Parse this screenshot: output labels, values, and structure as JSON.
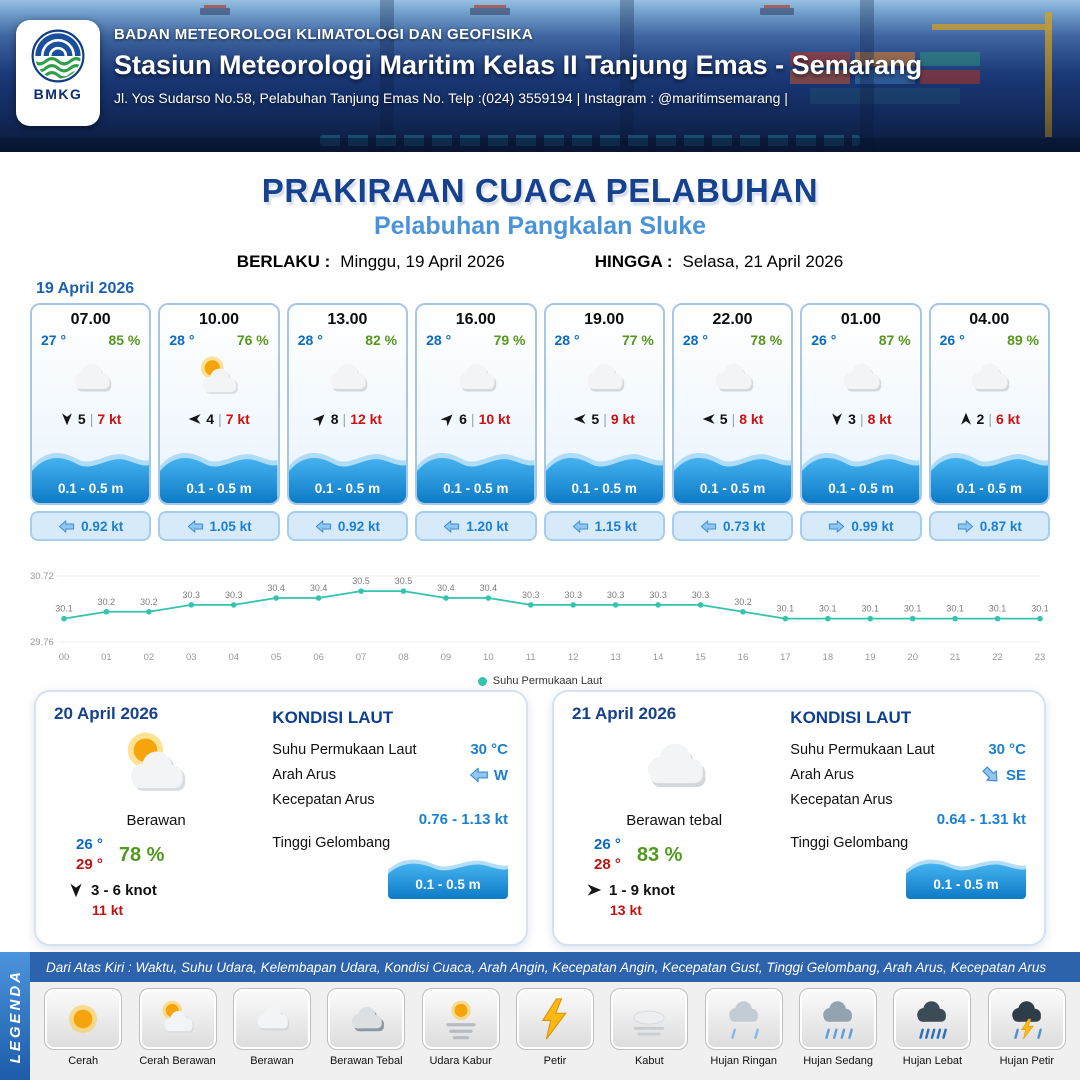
{
  "header": {
    "agency": "BADAN METEOROLOGI KLIMATOLOGI DAN GEOFISIKA",
    "station": "Stasiun Meteorologi Maritim Kelas II Tanjung Emas - Semarang",
    "address": "Jl. Yos Sudarso No.58, Pelabuhan Tanjung Emas No. Telp :(024) 3559194 | Instagram : @maritimsemarang |",
    "logo_text": "BMKG"
  },
  "title": {
    "main": "PRAKIRAAN CUACA PELABUHAN",
    "subtitle": "Pelabuhan Pangkalan Sluke",
    "valid_label": "BERLAKU :",
    "valid_value": "Minggu, 19 April 2026",
    "until_label": "HINGGA :",
    "until_value": "Selasa, 21 April 2026"
  },
  "forecast_date": "19 April 2026",
  "forecast_cards": [
    {
      "time": "07.00",
      "temp": "27 °",
      "humidity": "85 %",
      "icon": "cloud",
      "wind_deg": 90,
      "wind_val": "5",
      "wind_speed": "7 kt",
      "wave_height": "0.1 - 0.5 m",
      "current_deg": 180,
      "current_speed": "0.92 kt"
    },
    {
      "time": "10.00",
      "temp": "28 °",
      "humidity": "76 %",
      "icon": "sun-cloud",
      "wind_deg": 180,
      "wind_val": "4",
      "wind_speed": "7 kt",
      "wave_height": "0.1 - 0.5 m",
      "current_deg": 180,
      "current_speed": "1.05 kt"
    },
    {
      "time": "13.00",
      "temp": "28 °",
      "humidity": "82 %",
      "icon": "cloud",
      "wind_deg": -45,
      "wind_val": "8",
      "wind_speed": "12 kt",
      "wave_height": "0.1 - 0.5 m",
      "current_deg": 180,
      "current_speed": "0.92 kt"
    },
    {
      "time": "16.00",
      "temp": "28 °",
      "humidity": "79 %",
      "icon": "cloud",
      "wind_deg": -45,
      "wind_val": "6",
      "wind_speed": "10 kt",
      "wave_height": "0.1 - 0.5 m",
      "current_deg": 180,
      "current_speed": "1.20 kt"
    },
    {
      "time": "19.00",
      "temp": "28 °",
      "humidity": "77 %",
      "icon": "cloud",
      "wind_deg": 180,
      "wind_val": "5",
      "wind_speed": "9 kt",
      "wave_height": "0.1 - 0.5 m",
      "current_deg": 180,
      "current_speed": "1.15 kt"
    },
    {
      "time": "22.00",
      "temp": "28 °",
      "humidity": "78 %",
      "icon": "cloud",
      "wind_deg": 180,
      "wind_val": "5",
      "wind_speed": "8 kt",
      "wave_height": "0.1 - 0.5 m",
      "current_deg": 180,
      "current_speed": "0.73 kt"
    },
    {
      "time": "01.00",
      "temp": "26 °",
      "humidity": "87 %",
      "icon": "cloud",
      "wind_deg": 90,
      "wind_val": "3",
      "wind_speed": "8 kt",
      "wave_height": "0.1 - 0.5 m",
      "current_deg": 0,
      "current_speed": "0.99 kt"
    },
    {
      "time": "04.00",
      "temp": "26 °",
      "humidity": "89 %",
      "icon": "cloud",
      "wind_deg": -90,
      "wind_val": "2",
      "wind_speed": "6 kt",
      "wave_height": "0.1 - 0.5 m",
      "current_deg": 0,
      "current_speed": "0.87 kt"
    }
  ],
  "chart_data": {
    "type": "line",
    "title": "",
    "xlabel": "",
    "ylabel": "",
    "x": [
      "00",
      "01",
      "02",
      "03",
      "04",
      "05",
      "06",
      "07",
      "08",
      "09",
      "10",
      "11",
      "12",
      "13",
      "14",
      "15",
      "16",
      "17",
      "18",
      "19",
      "20",
      "21",
      "22",
      "23"
    ],
    "series": [
      {
        "name": "Suhu Permukaan Laut",
        "values": [
          30.1,
          30.2,
          30.2,
          30.3,
          30.3,
          30.4,
          30.4,
          30.5,
          30.5,
          30.4,
          30.4,
          30.3,
          30.3,
          30.3,
          30.3,
          30.3,
          30.2,
          30.1,
          30.1,
          30.1,
          30.1,
          30.1,
          30.1,
          30.1
        ]
      }
    ],
    "ylim": [
      29.76,
      30.72
    ],
    "grid": true,
    "legend_position": "bottom",
    "line_color": "#33c3ae"
  },
  "day_cards": [
    {
      "date": "20 April 2026",
      "icon": "sun-cloud",
      "condition": "Berawan",
      "temp_min": "26 °",
      "temp_max": "29 °",
      "humidity": "78 %",
      "wind_deg": 90,
      "wind_range": "3  - 6 knot",
      "gust": "11 kt",
      "sea": {
        "title": "KONDISI LAUT",
        "sst_label": "Suhu Permukaan Laut",
        "sst_value": "30 °C",
        "current_dir_label": "Arah Arus",
        "current_dir_value": "W",
        "current_dir_deg": 180,
        "current_speed_label": "Kecepatan Arus",
        "current_speed_value": "0.76 - 1.13 kt",
        "wave_label": "Tinggi Gelombang",
        "wave_value": "0.1 - 0.5 m"
      }
    },
    {
      "date": "21 April 2026",
      "icon": "cloud",
      "condition": "Berawan tebal",
      "temp_min": "26 °",
      "temp_max": "28 °",
      "humidity": "83 %",
      "wind_deg": 0,
      "wind_range": "1  - 9 knot",
      "gust": "13 kt",
      "sea": {
        "title": "KONDISI LAUT",
        "sst_label": "Suhu Permukaan Laut",
        "sst_value": "30 °C",
        "current_dir_label": "Arah Arus",
        "current_dir_value": "SE",
        "current_dir_deg": 45,
        "current_speed_label": "Kecepatan Arus",
        "current_speed_value": "0.64 - 1.31 kt",
        "wave_label": "Tinggi Gelombang",
        "wave_value": "0.1 - 0.5 m"
      }
    }
  ],
  "legend": {
    "sidebar": "LEGENDA",
    "description": "Dari Atas Kiri : Waktu, Suhu Udara, Kelembapan Udara, Kondisi Cuaca, Arah Angin, Kecepatan Angin, Kecepatan Gust, Tinggi Gelombang, Arah Arus, Kecepatan Arus",
    "items": [
      {
        "label": "Cerah",
        "icon": "sun"
      },
      {
        "label": "Cerah Berawan",
        "icon": "sun-cloud"
      },
      {
        "label": "Berawan",
        "icon": "cloud"
      },
      {
        "label": "Berawan Tebal",
        "icon": "cloud-dark"
      },
      {
        "label": "Udara Kabur",
        "icon": "haze"
      },
      {
        "label": "Petir",
        "icon": "lightning"
      },
      {
        "label": "Kabut",
        "icon": "fog"
      },
      {
        "label": "Hujan Ringan",
        "icon": "rain-light"
      },
      {
        "label": "Hujan Sedang",
        "icon": "rain-moderate"
      },
      {
        "label": "Hujan Lebat",
        "icon": "rain-heavy"
      },
      {
        "label": "Hujan Petir",
        "icon": "thunderstorm"
      }
    ]
  },
  "colors": {
    "navy": "#16418f",
    "accent_blue": "#4b93d9",
    "temp_blue": "#0a6bc4",
    "humidity_green": "#57971c",
    "wind_red": "#cc1111",
    "wave_blue": "#0d7ac6",
    "chart_teal": "#33c3ae",
    "legend_bar_blue": "#2d63ad"
  }
}
